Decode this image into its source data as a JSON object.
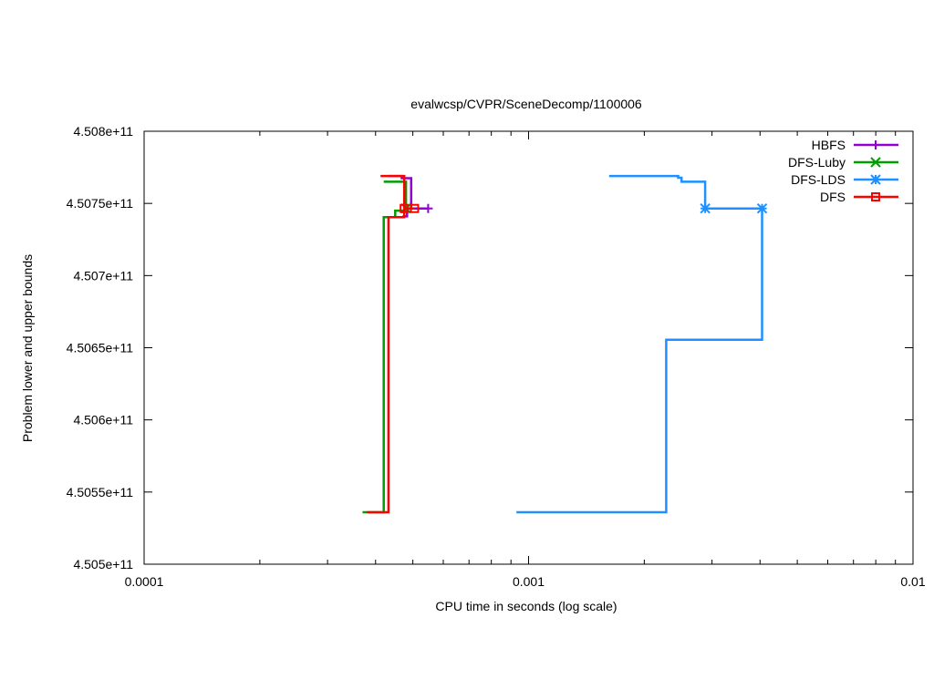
{
  "chart_data": {
    "type": "line",
    "title": "evalwcsp/CVPR/SceneDecomp/1100006",
    "xlabel": "CPU time in seconds (log scale)",
    "ylabel": "Problem lower and upper bounds",
    "x_scale": "log",
    "xlim": [
      0.0001,
      0.01
    ],
    "ylim": [
      450500000000,
      450800000000
    ],
    "x_ticks": [
      {
        "value": 0.0001,
        "label": "0.0001"
      },
      {
        "value": 0.001,
        "label": "0.001"
      },
      {
        "value": 0.01,
        "label": "0.01"
      }
    ],
    "y_ticks": [
      {
        "value": 450500000000,
        "label": "4.505e+11"
      },
      {
        "value": 450550000000,
        "label": "4.5055e+11"
      },
      {
        "value": 450600000000,
        "label": "4.506e+11"
      },
      {
        "value": 450650000000,
        "label": "4.5065e+11"
      },
      {
        "value": 450700000000,
        "label": "4.507e+11"
      },
      {
        "value": 450750000000,
        "label": "4.5075e+11"
      },
      {
        "value": 450800000000,
        "label": "4.508e+11"
      }
    ],
    "grid": false,
    "legend_position": "top-right",
    "series": [
      {
        "name": "HBFS",
        "color": "#9400d3",
        "marker": "plus",
        "upper": [
          [
            0.000432,
            450769000000
          ],
          [
            0.000468,
            450769000000
          ],
          [
            0.000468,
            450767500000
          ],
          [
            0.000495,
            450767500000
          ],
          [
            0.000495,
            450746500000
          ]
        ],
        "lower": [
          [
            0.00047,
            450741000000
          ],
          [
            0.000483,
            450741000000
          ],
          [
            0.000483,
            450746500000
          ],
          [
            0.000548,
            450746500000
          ]
        ],
        "points": [
          [
            0.000548,
            450746500000
          ]
        ]
      },
      {
        "name": "DFS-Luby",
        "color": "#009e00",
        "marker": "x",
        "upper": [
          [
            0.00042,
            450765000000
          ],
          [
            0.00048,
            450765000000
          ],
          [
            0.00048,
            450746500000
          ]
        ],
        "lower": [
          [
            0.00037,
            450536000000
          ],
          [
            0.00042,
            450536000000
          ],
          [
            0.00042,
            450740500000
          ],
          [
            0.00045,
            450740500000
          ],
          [
            0.00045,
            450745000000
          ],
          [
            0.00048,
            450745000000
          ],
          [
            0.00048,
            450746500000
          ]
        ],
        "points": [
          [
            0.00048,
            450746500000
          ]
        ]
      },
      {
        "name": "DFS-LDS",
        "color": "#1e90ff",
        "marker": "star",
        "upper": [
          [
            0.00162,
            450769000000
          ],
          [
            0.00245,
            450769000000
          ],
          [
            0.00245,
            450767800000
          ],
          [
            0.0025,
            450767800000
          ],
          [
            0.0025,
            450765000000
          ],
          [
            0.00288,
            450765000000
          ],
          [
            0.00288,
            450746500000
          ],
          [
            0.00405,
            450746500000
          ],
          [
            0.00405,
            450746500000
          ]
        ],
        "lower": [
          [
            0.00093,
            450536000000
          ],
          [
            0.00228,
            450536000000
          ],
          [
            0.00228,
            450655500000
          ],
          [
            0.00405,
            450655500000
          ],
          [
            0.00405,
            450746500000
          ]
        ],
        "points": [
          [
            0.00288,
            450746500000
          ],
          [
            0.00405,
            450746500000
          ]
        ]
      },
      {
        "name": "DFS",
        "color": "#ff0000",
        "marker": "square",
        "upper": [
          [
            0.000412,
            450769000000
          ],
          [
            0.000475,
            450769000000
          ],
          [
            0.000475,
            450746500000
          ],
          [
            0.000505,
            450746500000
          ]
        ],
        "lower": [
          [
            0.00038,
            450536000000
          ],
          [
            0.000432,
            450536000000
          ],
          [
            0.000432,
            450740500000
          ],
          [
            0.000475,
            450740500000
          ],
          [
            0.000475,
            450746500000
          ]
        ],
        "points": [
          [
            0.000475,
            450746500000
          ],
          [
            0.000505,
            450746500000
          ]
        ]
      }
    ]
  }
}
